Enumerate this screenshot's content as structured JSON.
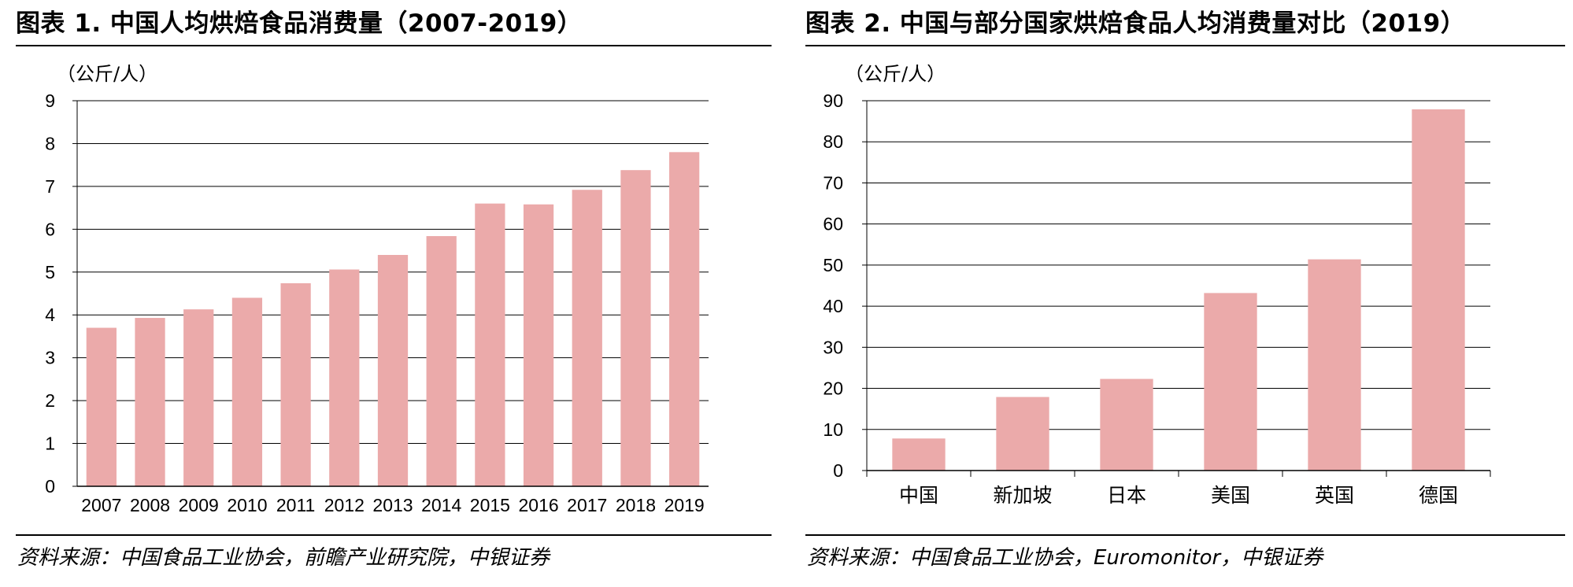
{
  "colors": {
    "bar": "#ebaaaa",
    "grid": "#000000",
    "text": "#000000"
  },
  "charts": [
    {
      "id": "left",
      "title": "图表 1. 中国人均烘焙食品消费量（2007-2019）",
      "source": "资料来源：中国食品工业协会，前瞻产业研究院，中银证券",
      "chart_data": {
        "type": "bar",
        "unit_label": "（公斤/人）",
        "categories": [
          "2007",
          "2008",
          "2009",
          "2010",
          "2011",
          "2012",
          "2013",
          "2014",
          "2015",
          "2016",
          "2017",
          "2018",
          "2019"
        ],
        "values": [
          3.7,
          3.93,
          4.13,
          4.4,
          4.74,
          5.06,
          5.4,
          5.84,
          6.6,
          6.58,
          6.92,
          7.38,
          7.8
        ],
        "ylim": [
          0,
          9
        ],
        "yticks": [
          0,
          1,
          2,
          3,
          4,
          5,
          6,
          7,
          8,
          9
        ],
        "grid": true
      }
    },
    {
      "id": "right",
      "title": "图表 2. 中国与部分国家烘焙食品人均消费量对比（2019）",
      "source": "资料来源：中国食品工业协会，Euromonitor，中银证券",
      "chart_data": {
        "type": "bar",
        "unit_label": "（公斤/人）",
        "categories": [
          "中国",
          "新加坡",
          "日本",
          "美国",
          "英国",
          "德国"
        ],
        "values": [
          7.8,
          17.9,
          22.3,
          43.2,
          51.4,
          87.9
        ],
        "ylim": [
          0,
          90
        ],
        "yticks": [
          0,
          10,
          20,
          30,
          40,
          50,
          60,
          70,
          80,
          90
        ],
        "grid": true
      }
    }
  ]
}
